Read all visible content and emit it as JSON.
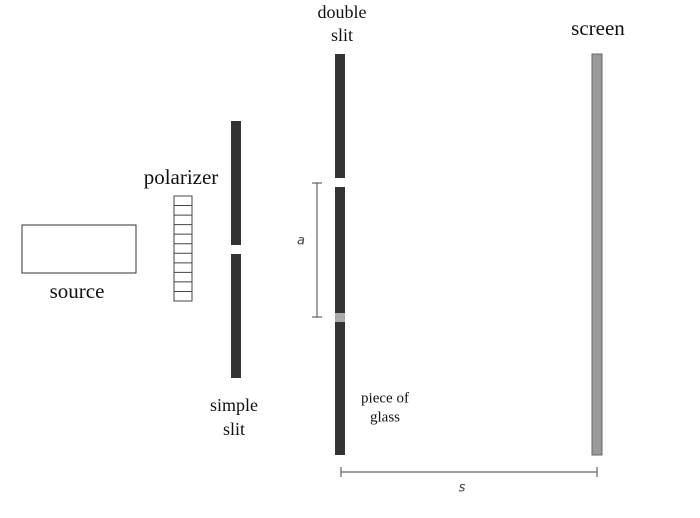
{
  "labels": {
    "double_slit": [
      "double",
      "slit"
    ],
    "screen": "screen",
    "polarizer": "polarizer",
    "source": "source",
    "simple_slit": [
      "simple",
      "slit"
    ],
    "a": "a",
    "piece_of_glass": [
      "piece of",
      "glass"
    ],
    "s": "s"
  }
}
